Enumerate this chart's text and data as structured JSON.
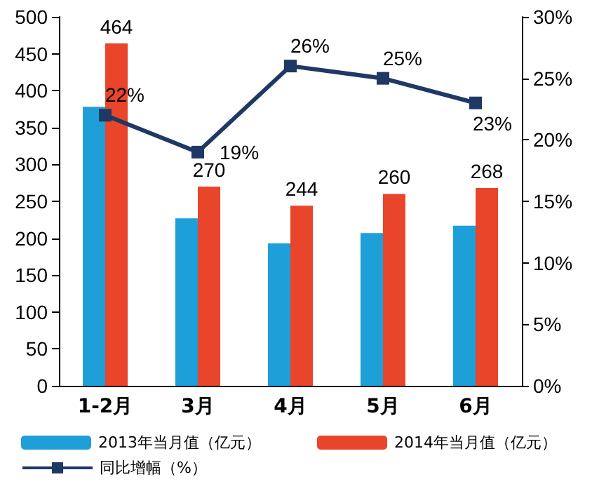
{
  "chart_data": {
    "type": "bar",
    "categories": [
      "1-2月",
      "3月",
      "4月",
      "5月",
      "6月"
    ],
    "series": [
      {
        "name": "2013年当月值（亿元）",
        "color": "#1e9fd8",
        "values": [
          378,
          227,
          193,
          207,
          217
        ]
      },
      {
        "name": "2014年当月值（亿元）",
        "color": "#e8452a",
        "values": [
          464,
          270,
          244,
          260,
          268
        ],
        "value_labels": [
          "464",
          "270",
          "244",
          "260",
          "268"
        ]
      },
      {
        "name": "同比增幅（%）",
        "type": "line",
        "axis": "y2",
        "color": "#1f3864",
        "values": [
          22,
          19,
          26,
          25,
          23
        ],
        "value_labels": [
          "22%",
          "19%",
          "26%",
          "25%",
          "23%"
        ]
      }
    ],
    "ylim": [
      0,
      500
    ],
    "yticks": [
      0,
      50,
      100,
      150,
      200,
      250,
      300,
      350,
      400,
      450,
      500
    ],
    "y2lim": [
      0,
      30
    ],
    "y2ticks": [
      {
        "value": 0,
        "label": "0%"
      },
      {
        "value": 5,
        "label": "5%"
      },
      {
        "value": 10,
        "label": "10%"
      },
      {
        "value": 15,
        "label": "15%"
      },
      {
        "value": 20,
        "label": "20%"
      },
      {
        "value": 25,
        "label": "25%"
      },
      {
        "value": 30,
        "label": "30%"
      }
    ],
    "legend": "bottom",
    "marker": "square",
    "line_style": "solid",
    "grid": false
  }
}
